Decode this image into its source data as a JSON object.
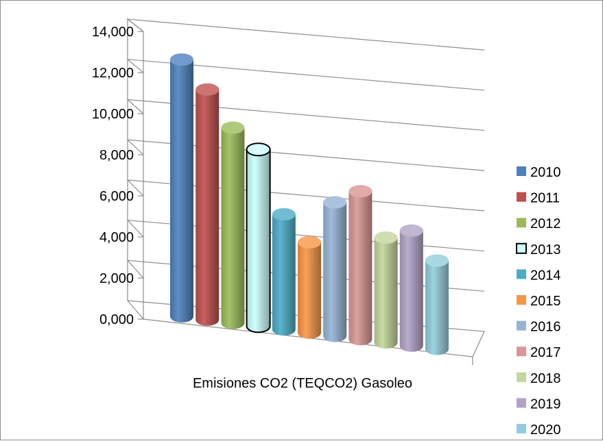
{
  "chart_data": {
    "type": "bar",
    "style": "3d-cylinder",
    "category": "Emisiones CO2 (TEQCO2) Gasoleo",
    "ylim": [
      0,
      14000
    ],
    "yticks": [
      "0,000",
      "2,000",
      "4,000",
      "6,000",
      "8,000",
      "10,000",
      "12,000",
      "14,000"
    ],
    "grid": true,
    "legend_position": "right",
    "series": [
      {
        "name": "2010",
        "value": 12500,
        "color": "#4f81bd"
      },
      {
        "name": "2011",
        "value": 11200,
        "color": "#c0504d"
      },
      {
        "name": "2012",
        "value": 9500,
        "color": "#9bbb59"
      },
      {
        "name": "2013",
        "value": 8600,
        "color": "#ccffff"
      },
      {
        "name": "2014",
        "value": 5600,
        "color": "#4bacc6"
      },
      {
        "name": "2015",
        "value": 4400,
        "color": "#f79646"
      },
      {
        "name": "2016",
        "value": 6500,
        "color": "#95b3d7"
      },
      {
        "name": "2017",
        "value": 7200,
        "color": "#d99694"
      },
      {
        "name": "2018",
        "value": 5100,
        "color": "#c3d69b"
      },
      {
        "name": "2019",
        "value": 5600,
        "color": "#b3a2c7"
      },
      {
        "name": "2020",
        "value": 4300,
        "color": "#93cddd"
      }
    ]
  }
}
